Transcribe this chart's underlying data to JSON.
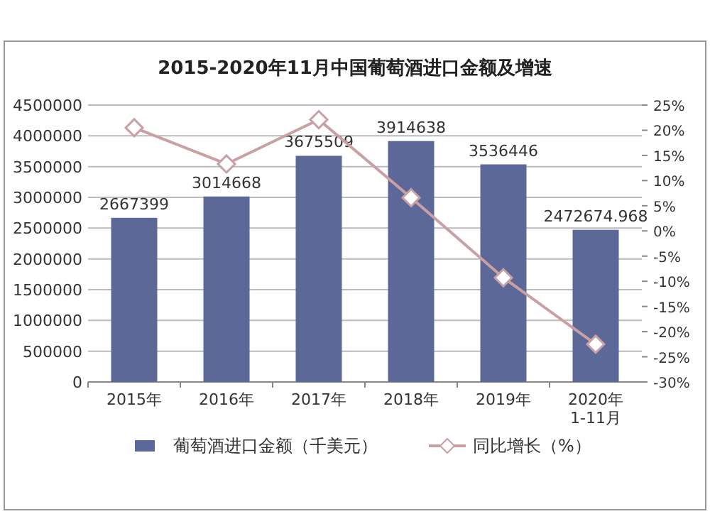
{
  "chart_data": {
    "type": "bar",
    "title": "2015-2020年11月中国葡萄酒进口金额及增速",
    "categories": [
      "2015年",
      "2016年",
      "2017年",
      "2018年",
      "2019年",
      "2020年\n1-11月"
    ],
    "series": [
      {
        "name": "葡萄酒进口金额（千美元）",
        "color": "#5b6898",
        "values": [
          2667399,
          3014668,
          3675509,
          3914638,
          3536446,
          2472674.968
        ],
        "value_labels": [
          "2667399",
          "3014668",
          "3675509",
          "3914638",
          "3536446",
          "2472674.968"
        ]
      },
      {
        "name": "同比增长（%）",
        "type": "line",
        "axis": "y2",
        "color": "#c9a0a4",
        "marker": "diamond",
        "values": [
          20.5,
          13.3,
          22.1,
          6.6,
          -9.3,
          -22.5
        ]
      }
    ],
    "ylim": [
      0,
      4500000
    ],
    "yticks": [
      0,
      500000,
      1000000,
      1500000,
      2000000,
      2500000,
      3000000,
      3500000,
      4000000,
      4500000
    ],
    "y2lim": [
      -30,
      25
    ],
    "y2ticks": [
      {
        "value": 25,
        "label": "25%"
      },
      {
        "value": 20,
        "label": "20%"
      },
      {
        "value": 15,
        "label": "15%"
      },
      {
        "value": 10,
        "label": "10%"
      },
      {
        "value": 5,
        "label": "5%"
      },
      {
        "value": 0,
        "label": "0%"
      },
      {
        "value": -5,
        "label": "-5%"
      },
      {
        "value": -10,
        "label": "-10%"
      },
      {
        "value": -15,
        "label": "-15%"
      },
      {
        "value": -20,
        "label": "-20%"
      },
      {
        "value": -25,
        "label": "-25%"
      },
      {
        "value": -30,
        "label": "-30%"
      }
    ],
    "grid": "y",
    "legend": "bottom"
  }
}
